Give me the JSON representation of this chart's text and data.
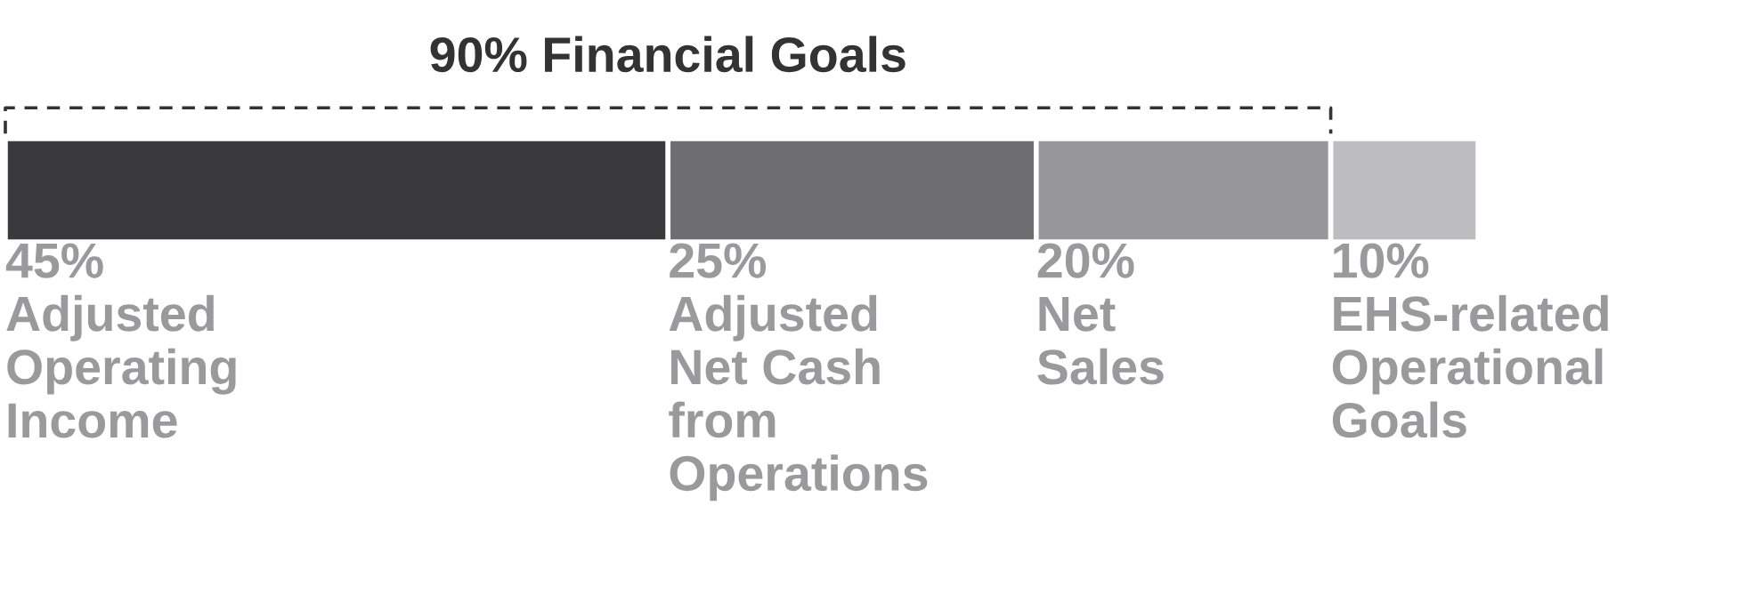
{
  "chart_data": {
    "type": "bar",
    "orientation": "horizontal",
    "stacked": true,
    "categories": [
      null
    ],
    "series": [
      {
        "name": "Adjusted\nOperating\nIncome",
        "color": "#3a3a3c",
        "values": [
          45
        ],
        "value_labels": [
          "45%"
        ]
      },
      {
        "name": "Adjusted\nNet Cash\nfrom\nOperations",
        "color": "#6e6e71",
        "values": [
          25
        ],
        "value_labels": [
          "25%"
        ]
      },
      {
        "name": "Net\nSales",
        "color": "#98989b",
        "values": [
          20
        ],
        "value_labels": [
          "20%"
        ]
      },
      {
        "name": "EHS-related\nOperational\nGoals",
        "color": "#bdbdbf",
        "values": [
          10
        ],
        "value_labels": [
          "10%"
        ]
      }
    ],
    "xlim": [
      0,
      100
    ],
    "tick_labels": false,
    "legend": false,
    "annotations": [
      "90% Financial Goals"
    ]
  }
}
